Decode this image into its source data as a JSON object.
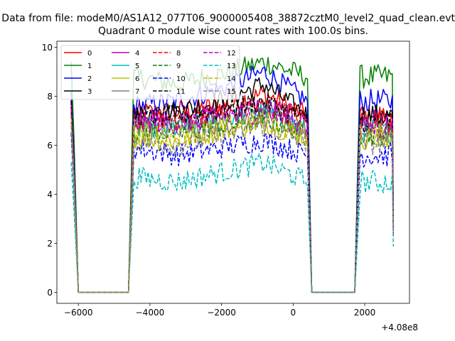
{
  "suptitle": "Data from file: modeM0/AS1A12_077T06_9000005408_38872cztM0_level2_quad_clean.evt",
  "chart_data": {
    "type": "line",
    "title": "Quadrant 0 module wise count rates with 100.0s bins.",
    "xlabel": "",
    "ylabel": "",
    "offset_label": "+4.08e8",
    "xlim": [
      -6600,
      3250
    ],
    "ylim": [
      -0.45,
      10.25
    ],
    "x_ticks": [
      -6000,
      -4000,
      -2000,
      0,
      2000
    ],
    "x_tick_labels": [
      "−6000",
      "−4000",
      "−2000",
      "0",
      "2000"
    ],
    "y_ticks": [
      0,
      2,
      4,
      6,
      8,
      10
    ],
    "y_tick_labels": [
      "0",
      "2",
      "4",
      "6",
      "8",
      "10"
    ],
    "grid": false,
    "legend": {
      "placement": "top-left",
      "columns": 4
    },
    "segments": [
      {
        "drop_start": -6200,
        "zero_start": -6000,
        "zero_end": -4600,
        "rise_end": -4450
      },
      {
        "drop_start": 400,
        "zero_start": 520,
        "zero_end": 1720,
        "rise_end": 1800
      },
      {
        "drop_start": 2750,
        "zero_start": 2800,
        "zero_end": 2800,
        "rise_end": 2800
      }
    ],
    "series": [
      {
        "name": "0",
        "color": "#ff0000",
        "dash": "solid",
        "base": [
          7.3,
          7.4,
          7.6,
          8.1,
          7.2,
          6.3
        ]
      },
      {
        "name": "1",
        "color": "#008000",
        "dash": "solid",
        "base": [
          8.8,
          8.5,
          8.9,
          9.4,
          8.8,
          8.0
        ]
      },
      {
        "name": "2",
        "color": "#0000ff",
        "dash": "solid",
        "base": [
          7.6,
          7.8,
          8.3,
          9.0,
          7.8,
          6.9
        ]
      },
      {
        "name": "3",
        "color": "#000000",
        "dash": "solid",
        "base": [
          7.2,
          7.4,
          7.8,
          8.5,
          7.2,
          6.5
        ]
      },
      {
        "name": "4",
        "color": "#bf00bf",
        "dash": "solid",
        "base": [
          7.1,
          7.0,
          7.3,
          7.6,
          7.0,
          6.4
        ]
      },
      {
        "name": "5",
        "color": "#00bfbf",
        "dash": "solid",
        "base": [
          6.7,
          6.7,
          7.0,
          7.4,
          6.6,
          6.0
        ]
      },
      {
        "name": "6",
        "color": "#bfbf00",
        "dash": "solid",
        "base": [
          6.3,
          6.2,
          6.6,
          6.9,
          6.3,
          5.9
        ]
      },
      {
        "name": "7",
        "color": "#808080",
        "dash": "solid",
        "base": [
          6.8,
          6.7,
          6.9,
          7.2,
          6.6,
          6.1
        ]
      },
      {
        "name": "8",
        "color": "#ff0000",
        "dash": "dashed",
        "base": [
          7.0,
          7.0,
          7.3,
          7.6,
          7.0,
          6.5
        ]
      },
      {
        "name": "9",
        "color": "#008000",
        "dash": "dashed",
        "base": [
          6.6,
          6.5,
          6.8,
          7.1,
          6.5,
          6.0
        ]
      },
      {
        "name": "10",
        "color": "#0000ff",
        "dash": "dashed",
        "base": [
          5.9,
          5.6,
          5.9,
          6.2,
          5.6,
          5.3
        ]
      },
      {
        "name": "11",
        "color": "#000000",
        "dash": "dashed",
        "base": [
          7.2,
          7.2,
          7.4,
          7.8,
          7.0,
          6.6
        ]
      },
      {
        "name": "12",
        "color": "#bf00bf",
        "dash": "dashed",
        "base": [
          6.9,
          6.9,
          7.1,
          7.4,
          6.7,
          6.3
        ]
      },
      {
        "name": "13",
        "color": "#00bfbf",
        "dash": "dashed",
        "base": [
          4.7,
          4.5,
          4.9,
          5.3,
          4.5,
          4.2
        ]
      },
      {
        "name": "14",
        "color": "#bfbf00",
        "dash": "dashed",
        "base": [
          6.5,
          6.4,
          6.7,
          7.0,
          6.4,
          5.9
        ]
      },
      {
        "name": "15",
        "color": "#808080",
        "dash": "dashed",
        "base": [
          6.2,
          6.0,
          6.4,
          6.8,
          6.1,
          5.7
        ]
      }
    ]
  }
}
